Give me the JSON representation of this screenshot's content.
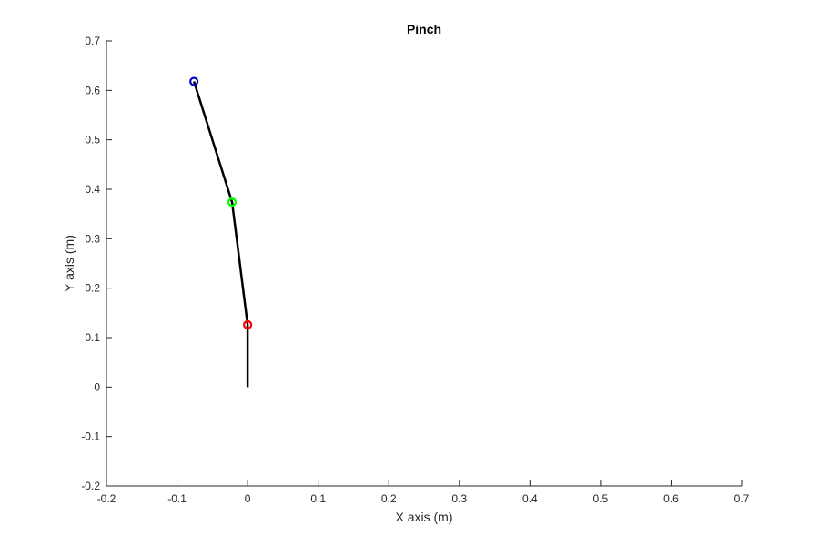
{
  "chart_data": {
    "type": "line",
    "title": "Pinch",
    "xlabel": "X axis (m)",
    "ylabel": "Y axis (m)",
    "xlim": [
      -0.2,
      0.7
    ],
    "ylim": [
      -0.2,
      0.7
    ],
    "xticks": [
      -0.2,
      -0.1,
      0,
      0.1,
      0.2,
      0.3,
      0.4,
      0.5,
      0.6,
      0.7
    ],
    "yticks": [
      -0.2,
      -0.1,
      0,
      0.1,
      0.2,
      0.3,
      0.4,
      0.5,
      0.6,
      0.7
    ],
    "xtick_labels": [
      "-0.2",
      "-0.1",
      "0",
      "0.1",
      "0.2",
      "0.3",
      "0.4",
      "0.5",
      "0.6",
      "0.7"
    ],
    "ytick_labels": [
      "-0.2",
      "-0.1",
      "0",
      "0.1",
      "0.2",
      "0.3",
      "0.4",
      "0.5",
      "0.6",
      "0.7"
    ],
    "grid": false,
    "series": [
      {
        "x": [
          0,
          0,
          -0.022,
          -0.076
        ],
        "y": [
          0,
          0.126,
          0.374,
          0.618
        ],
        "color": "#000000"
      }
    ],
    "markers": [
      {
        "x": 0,
        "y": 0.126,
        "color": "#ff0000"
      },
      {
        "x": -0.022,
        "y": 0.374,
        "color": "#00ff00"
      },
      {
        "x": -0.076,
        "y": 0.618,
        "color": "#0000cc"
      }
    ]
  }
}
